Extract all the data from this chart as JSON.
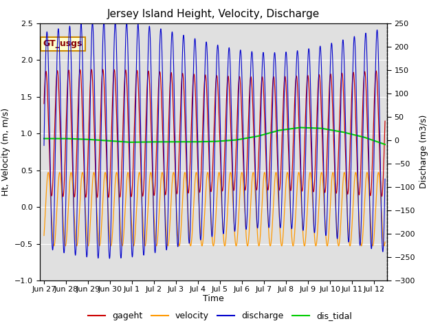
{
  "title": "Jersey Island Height, Velocity, Discharge",
  "xlabel": "Time",
  "ylabel_left": "Ht, Velocity (m, m/s)",
  "ylabel_right": "Discharge (m3/s)",
  "ylim_left": [
    -1.0,
    2.5
  ],
  "ylim_right": [
    -300,
    250
  ],
  "background_color": "#ffffff",
  "plot_bg_color": "#e0e0e0",
  "legend_colors": [
    "#cc0000",
    "#ff9900",
    "#0000cc",
    "#00cc00"
  ],
  "annotation_text": "GT_usgs",
  "annotation_bg": "#ffffcc",
  "annotation_border": "#cc8800",
  "tidal_period_hours": 12.42,
  "dis_tidal_values": [
    0.93,
    0.93,
    0.92,
    0.9,
    0.88,
    0.885,
    0.885,
    0.885,
    0.89,
    0.91,
    0.96,
    1.04,
    1.08,
    1.07,
    1.02,
    0.95,
    0.85
  ],
  "x_tick_labels": [
    "Jun 27",
    "Jun 28",
    "Jun 29",
    "Jun 30",
    "Jul 1",
    "Jul 2",
    "Jul 3",
    "Jul 4",
    "Jul 5",
    "Jul 6",
    "Jul 7",
    "Jul 8",
    "Jul 9",
    "Jul 10",
    "Jul 11",
    "Jul 12"
  ],
  "x_tick_positions": [
    0,
    1,
    2,
    3,
    4,
    5,
    6,
    7,
    8,
    9,
    10,
    11,
    12,
    13,
    14,
    15
  ],
  "title_fontsize": 11,
  "axis_label_fontsize": 9,
  "tick_fontsize": 8,
  "legend_fontsize": 9
}
